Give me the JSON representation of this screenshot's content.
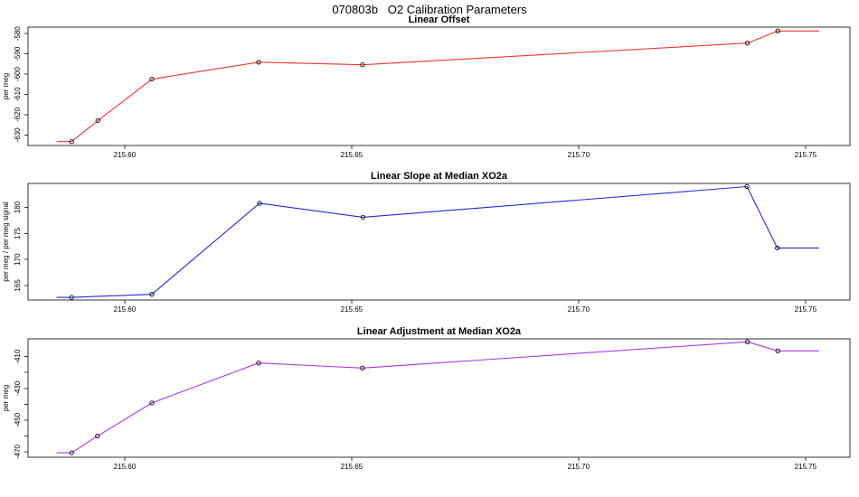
{
  "page_title": "070803b   O2 Calibration Parameters",
  "colors": {
    "offset_line": "#ee3333",
    "slope_line": "#2828d8",
    "adjustment_line": "#a835e8",
    "marker_stroke": "#222222",
    "axis": "#333333"
  },
  "chart_data": [
    {
      "type": "line",
      "title": "Linear Offset",
      "xlabel": "",
      "ylabel": "per meg",
      "legend": "none",
      "grid": false,
      "color": "#ee3333",
      "marker": "open-circle",
      "xlim": [
        215.5787,
        215.7598
      ],
      "ylim": [
        -635.2,
        -576.8
      ],
      "xticks": [
        215.6,
        215.65,
        215.7,
        215.75
      ],
      "xtick_labels": [
        "215.60",
        "215.65",
        "215.70",
        "215.75"
      ],
      "yticks": [
        -630,
        -620,
        -610,
        -600,
        -590,
        -580
      ],
      "ytick_labels": [
        "-630",
        "-620",
        "-610",
        "-600",
        "-590",
        "-580"
      ],
      "x": [
        215.585,
        215.5883,
        215.5941,
        215.606,
        215.6295,
        215.6524,
        215.7372,
        215.7439,
        215.753
      ],
      "y": [
        -633.3,
        -633.3,
        -622.9,
        -602.5,
        -594.1,
        -595.4,
        -584.7,
        -578.7,
        -578.7
      ],
      "has_marker": [
        false,
        true,
        true,
        true,
        true,
        true,
        true,
        true,
        false
      ]
    },
    {
      "type": "line",
      "title": "Linear Slope at Median XO2a",
      "xlabel": "",
      "ylabel": "per meg / per meg signal",
      "legend": "none",
      "grid": false,
      "color": "#2828d8",
      "marker": "open-circle",
      "xlim": [
        215.5787,
        215.7598
      ],
      "ylim": [
        162.2,
        184.6
      ],
      "xticks": [
        215.6,
        215.65,
        215.7,
        215.75
      ],
      "xtick_labels": [
        "215.60",
        "215.65",
        "215.70",
        "215.75"
      ],
      "yticks": [
        165,
        170,
        175,
        180
      ],
      "ytick_labels": [
        "165",
        "170",
        "175",
        "180"
      ],
      "x": [
        215.585,
        215.5883,
        215.606,
        215.6297,
        215.6525,
        215.7371,
        215.7438,
        215.753
      ],
      "y": [
        162.7,
        162.7,
        163.3,
        180.8,
        178.1,
        184.0,
        172.2,
        172.2
      ],
      "has_marker": [
        false,
        true,
        true,
        true,
        true,
        true,
        true,
        false
      ]
    },
    {
      "type": "line",
      "title": "Linear Adjustment at Median XO2a",
      "xlabel": "",
      "ylabel": "per meg",
      "legend": "none",
      "grid": false,
      "color": "#a835e8",
      "marker": "open-circle",
      "xlim": [
        215.5787,
        215.7598
      ],
      "ylim": [
        -473.4,
        -398.8
      ],
      "xticks": [
        215.6,
        215.65,
        215.7,
        215.75
      ],
      "xtick_labels": [
        "215.60",
        "215.65",
        "215.70",
        "215.75"
      ],
      "yticks": [
        -470,
        -460,
        -450,
        -440,
        -430,
        -420,
        -410
      ],
      "ytick_labels": [
        "-470",
        "",
        "-450",
        "",
        "-430",
        "",
        "-410"
      ],
      "x": [
        215.585,
        215.5883,
        215.594,
        215.606,
        215.6295,
        215.6524,
        215.7372,
        215.7439,
        215.753
      ],
      "y": [
        -470.6,
        -470.6,
        -460.1,
        -439.2,
        -414.0,
        -417.2,
        -400.7,
        -406.4,
        -406.4
      ],
      "has_marker": [
        false,
        true,
        true,
        true,
        true,
        true,
        true,
        true,
        false
      ]
    }
  ]
}
